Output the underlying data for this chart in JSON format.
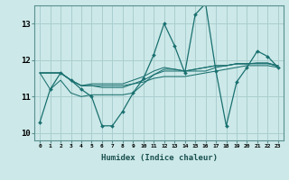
{
  "xlabel": "Humidex (Indice chaleur)",
  "background_color": "#cce8e8",
  "grid_color": "#aacece",
  "line_color": "#1a7070",
  "xlim": [
    -0.5,
    23.5
  ],
  "ylim": [
    9.8,
    13.5
  ],
  "yticks": [
    10,
    11,
    12,
    13
  ],
  "xticks": [
    0,
    1,
    2,
    3,
    4,
    5,
    6,
    7,
    8,
    9,
    10,
    11,
    12,
    13,
    14,
    15,
    16,
    17,
    18,
    19,
    20,
    21,
    22,
    23
  ],
  "series": [
    [
      10.3,
      11.2,
      11.65,
      11.45,
      11.2,
      11.0,
      10.2,
      10.2,
      10.6,
      11.1,
      11.5,
      12.15,
      13.0,
      12.4,
      11.65,
      13.25,
      13.55,
      11.7,
      10.2,
      11.4,
      11.8,
      12.25,
      12.1,
      11.8
    ],
    [
      11.65,
      11.65,
      11.65,
      11.45,
      11.3,
      11.35,
      11.35,
      11.35,
      11.35,
      11.45,
      11.55,
      11.7,
      11.8,
      11.75,
      11.7,
      11.75,
      11.8,
      11.85,
      11.85,
      11.9,
      11.9,
      11.9,
      11.9,
      11.85
    ],
    [
      11.65,
      11.65,
      11.65,
      11.45,
      11.3,
      11.3,
      11.25,
      11.25,
      11.25,
      11.35,
      11.4,
      11.5,
      11.55,
      11.55,
      11.55,
      11.6,
      11.65,
      11.7,
      11.75,
      11.8,
      11.85,
      11.85,
      11.85,
      11.8
    ],
    [
      11.65,
      11.65,
      11.65,
      11.45,
      11.3,
      11.3,
      11.3,
      11.3,
      11.3,
      11.35,
      11.45,
      11.6,
      11.7,
      11.7,
      11.7,
      11.75,
      11.8,
      11.85,
      11.85,
      11.9,
      11.9,
      11.92,
      11.92,
      11.85
    ],
    [
      11.65,
      11.2,
      11.45,
      11.1,
      11.0,
      11.05,
      11.05,
      11.05,
      11.05,
      11.1,
      11.35,
      11.6,
      11.75,
      11.75,
      11.7,
      11.7,
      11.7,
      11.8,
      11.85,
      11.9,
      11.9,
      11.92,
      11.92,
      11.82
    ]
  ]
}
